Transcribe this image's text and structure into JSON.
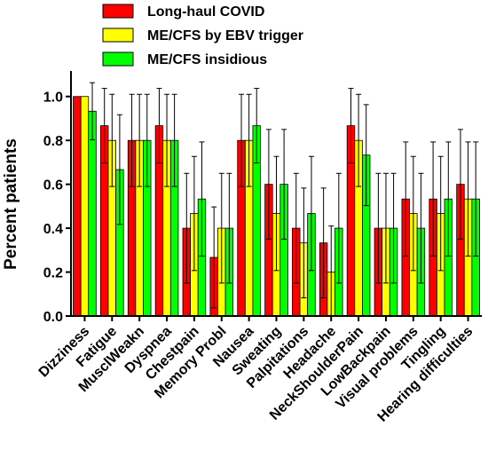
{
  "chart_data": {
    "type": "bar",
    "title": "",
    "xlabel": "",
    "ylabel": "Percent patients",
    "ylim": [
      0,
      1.1
    ],
    "yticks": [
      "0.0",
      "0.2",
      "0.4",
      "0.6",
      "0.8",
      "1.0"
    ],
    "grid": false,
    "legend_position": "top",
    "categories": [
      "Dizziness",
      "Fatigue",
      "MusclWeakn",
      "Dyspnea",
      "Chestpain",
      "Memory Probl",
      "Nausea",
      "Sweating",
      "Palpitations",
      "Headache",
      "NeckShoulderPain",
      "LowBackpain",
      "Visual problems",
      "Tingling",
      "Hearing difficulties"
    ],
    "series": [
      {
        "name": "Long-haul COVID",
        "color": "#ff0000",
        "values": [
          1.0,
          0.867,
          0.8,
          0.867,
          0.4,
          0.267,
          0.8,
          0.6,
          0.4,
          0.333,
          0.867,
          0.4,
          0.533,
          0.533,
          0.6
        ],
        "error": [
          0.0,
          0.17,
          0.21,
          0.17,
          0.25,
          0.23,
          0.21,
          0.25,
          0.25,
          0.25,
          0.17,
          0.25,
          0.26,
          0.26,
          0.25
        ]
      },
      {
        "name": "ME/CFS by EBV trigger",
        "color": "#ffff00",
        "values": [
          1.0,
          0.8,
          0.8,
          0.8,
          0.467,
          0.4,
          0.8,
          0.467,
          0.333,
          0.2,
          0.8,
          0.4,
          0.467,
          0.467,
          0.533
        ],
        "error": [
          0.0,
          0.21,
          0.21,
          0.21,
          0.26,
          0.25,
          0.21,
          0.26,
          0.25,
          0.21,
          0.21,
          0.25,
          0.26,
          0.26,
          0.26
        ]
      },
      {
        "name": "ME/CFS insidious",
        "color": "#00ff00",
        "values": [
          0.933,
          0.667,
          0.8,
          0.8,
          0.533,
          0.4,
          0.867,
          0.6,
          0.467,
          0.4,
          0.733,
          0.4,
          0.4,
          0.533,
          0.533
        ],
        "error": [
          0.13,
          0.25,
          0.21,
          0.21,
          0.26,
          0.25,
          0.17,
          0.25,
          0.26,
          0.25,
          0.23,
          0.25,
          0.25,
          0.26,
          0.26
        ]
      }
    ]
  }
}
